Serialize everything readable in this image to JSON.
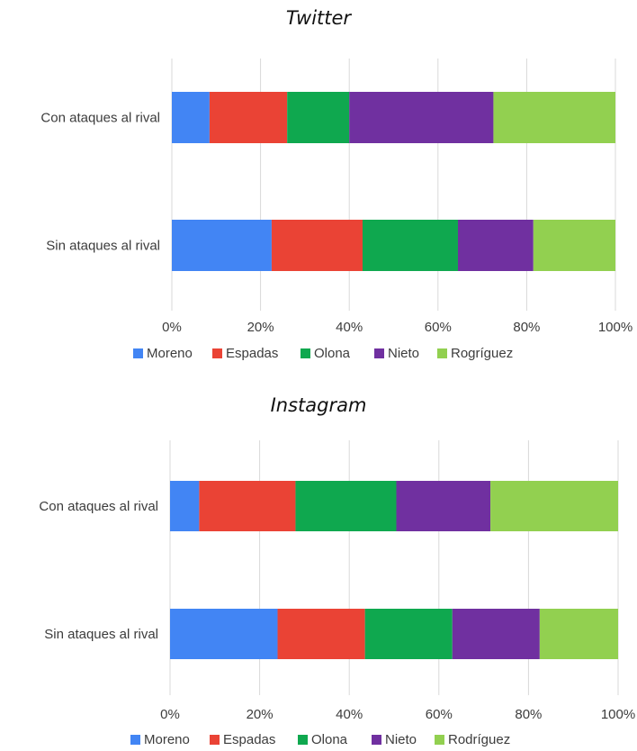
{
  "chart_data": [
    {
      "type": "bar",
      "orientation": "horizontal",
      "stacked": "percent",
      "title": "Twitter",
      "categories": [
        "Con ataques al rival",
        "Sin ataques al rival"
      ],
      "series": [
        {
          "name": "Moreno",
          "values": [
            8.5,
            22.5
          ],
          "color": "#4285f4"
        },
        {
          "name": "Espadas",
          "values": [
            17.5,
            20.5
          ],
          "color": "#ea4335"
        },
        {
          "name": "Olona",
          "values": [
            14,
            21.5
          ],
          "color": "#0fa84f"
        },
        {
          "name": "Nieto",
          "values": [
            32.5,
            17
          ],
          "color": "#7030a0"
        },
        {
          "name": "Rogríguez",
          "values": [
            27.5,
            18.5
          ],
          "color": "#92d050"
        }
      ],
      "xticks": [
        "0%",
        "20%",
        "40%",
        "60%",
        "80%",
        "100%"
      ],
      "xlim": [
        0,
        100
      ],
      "grid": "vertical",
      "legend_position": "bottom"
    },
    {
      "type": "bar",
      "orientation": "horizontal",
      "stacked": "percent",
      "title": "Instagram",
      "categories": [
        "Con ataques al rival",
        "Sin ataques al rival"
      ],
      "series": [
        {
          "name": "Moreno",
          "values": [
            6.5,
            24
          ],
          "color": "#4285f4"
        },
        {
          "name": "Espadas",
          "values": [
            21.5,
            19.5
          ],
          "color": "#ea4335"
        },
        {
          "name": "Olona",
          "values": [
            22.5,
            19.5
          ],
          "color": "#0fa84f"
        },
        {
          "name": "Nieto",
          "values": [
            21,
            19.5
          ],
          "color": "#7030a0"
        },
        {
          "name": "Rodríguez",
          "values": [
            28.5,
            17.5
          ],
          "color": "#92d050"
        }
      ],
      "xticks": [
        "0%",
        "20%",
        "40%",
        "60%",
        "80%",
        "100%"
      ],
      "xlim": [
        0,
        100
      ],
      "grid": "vertical",
      "legend_position": "bottom"
    }
  ]
}
